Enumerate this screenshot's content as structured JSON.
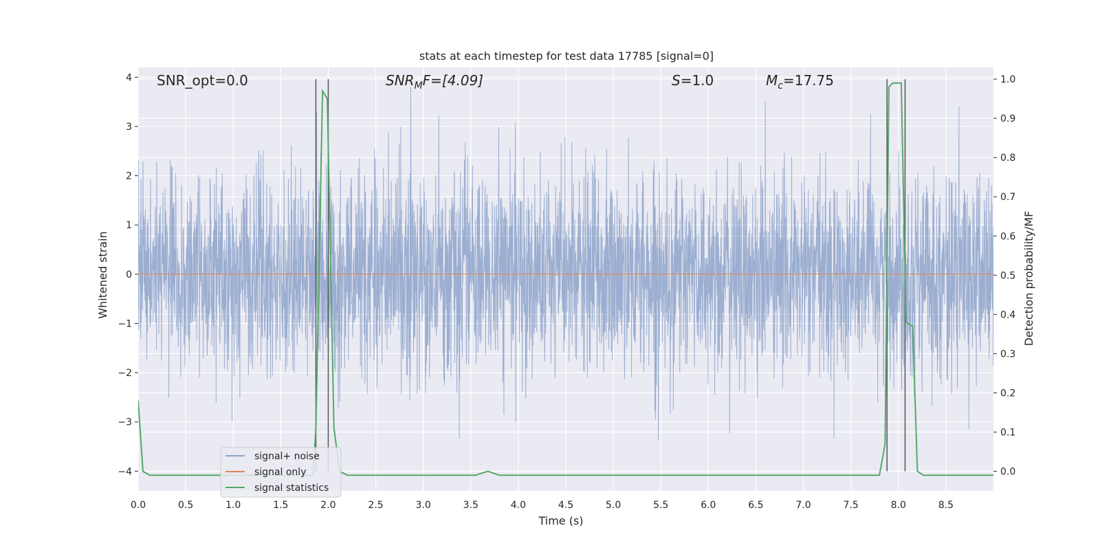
{
  "chart_data": {
    "type": "line",
    "title": "stats at each timestep for test data 17785 [signal=0]",
    "xlabel": "Time (s)",
    "ylabel": "Whitened strain",
    "y2label": "Detection probability/MF",
    "xlim": [
      0,
      9.0
    ],
    "ylim": [
      -4.4,
      4.2
    ],
    "y2lim": [
      -0.05,
      1.03
    ],
    "x_ticks": [
      "0.0",
      "0.5",
      "1.0",
      "1.5",
      "2.0",
      "2.5",
      "3.0",
      "3.5",
      "4.0",
      "4.5",
      "5.0",
      "5.5",
      "6.0",
      "6.5",
      "7.0",
      "7.5",
      "8.0",
      "8.5"
    ],
    "y_ticks": [
      "−4",
      "−3",
      "−2",
      "−1",
      "0",
      "1",
      "2",
      "3",
      "4"
    ],
    "y2_ticks": [
      "0.0",
      "0.1",
      "0.2",
      "0.3",
      "0.4",
      "0.5",
      "0.6",
      "0.7",
      "0.8",
      "0.9",
      "1.0"
    ],
    "grid": true,
    "legend_position": "lower-left",
    "colors": {
      "noise": "#4c72b0",
      "signal": "#dd8452",
      "stats": "#55a868",
      "vline": "#555555",
      "background": "#eaeaf2"
    },
    "annotations": {
      "snr_opt": "SNR_opt=0.0",
      "snr_mf_base": "SNR",
      "snr_mf_sub": "M",
      "snr_mf_rest": "F=[4.09]",
      "s_italic": "S",
      "s_rest": "=1.0",
      "mc_base": "M",
      "mc_sub": "c",
      "mc_rest": "=17.75"
    },
    "series": [
      {
        "name": "signal+ noise",
        "axis": "left",
        "noise_std": 1.0,
        "x_range": [
          0,
          9.0
        ]
      },
      {
        "name": "signal only",
        "axis": "left",
        "x": [
          0,
          9.0
        ],
        "y": [
          0,
          0
        ]
      },
      {
        "name": "signal statistics",
        "axis": "right",
        "x": [
          0.0,
          0.05,
          0.12,
          1.84,
          1.87,
          1.94,
          1.99,
          2.06,
          2.12,
          2.2,
          3.55,
          3.68,
          3.8,
          7.8,
          7.86,
          7.9,
          7.94,
          8.03,
          8.08,
          8.15,
          8.2,
          8.26,
          9.0
        ],
        "y": [
          0.18,
          0.0,
          -0.01,
          -0.01,
          0.11,
          0.97,
          0.95,
          0.11,
          0.0,
          -0.01,
          -0.01,
          0.0,
          -0.01,
          -0.01,
          0.07,
          0.98,
          0.99,
          0.99,
          0.38,
          0.37,
          0.0,
          -0.01,
          -0.01
        ]
      }
    ],
    "vertical_lines": [
      1.87,
      2.0,
      7.88,
      8.07
    ]
  }
}
